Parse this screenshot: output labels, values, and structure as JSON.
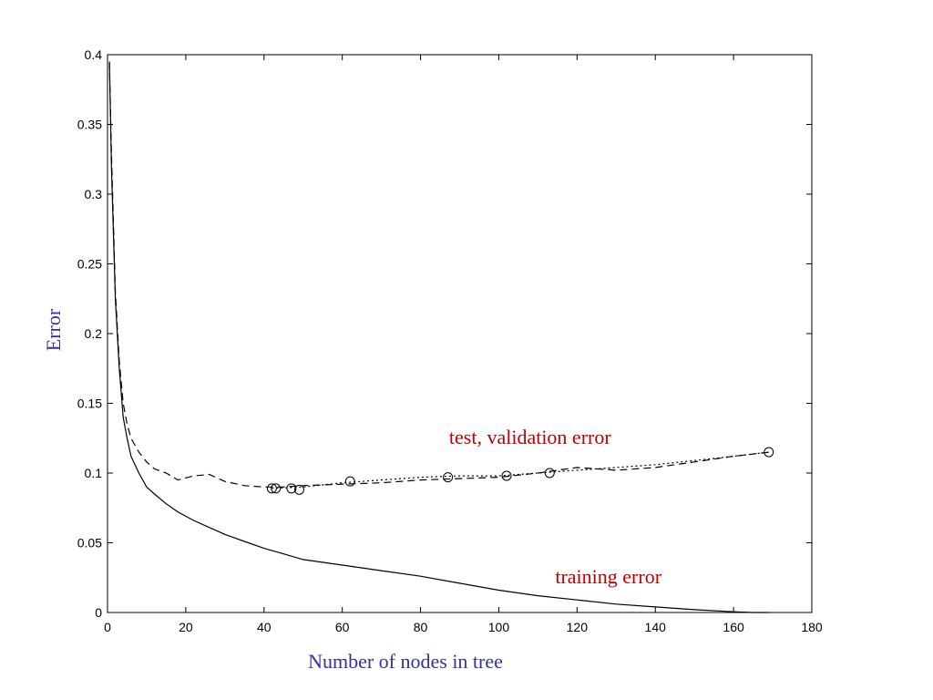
{
  "chart_data": {
    "type": "line",
    "xlabel": "Number of nodes in tree",
    "ylabel": "Error",
    "xlim": [
      0,
      180
    ],
    "ylim": [
      0,
      0.4
    ],
    "xticks": [
      0,
      20,
      40,
      60,
      80,
      100,
      120,
      140,
      160,
      180
    ],
    "xtick_labels": [
      "0",
      "20",
      "40",
      "60",
      "80",
      "100",
      "120",
      "140",
      "160",
      "180"
    ],
    "yticks": [
      0,
      0.05,
      0.1,
      0.15,
      0.2,
      0.25,
      0.3,
      0.35,
      0.4
    ],
    "ytick_labels": [
      "0",
      "0.05",
      "0.1",
      "0.15",
      "0.2",
      "0.25",
      "0.3",
      "0.35",
      "0.4"
    ],
    "grid": false,
    "series": [
      {
        "line_style": "solid",
        "color": "#000000",
        "x": [
          0.5,
          1,
          2,
          3,
          4,
          5,
          6,
          8,
          10,
          12,
          15,
          18,
          22,
          26,
          30,
          35,
          40,
          45,
          50,
          60,
          70,
          80,
          90,
          100,
          110,
          120,
          130,
          140,
          150,
          160,
          165,
          169
        ],
        "y": [
          0.395,
          0.32,
          0.225,
          0.175,
          0.14,
          0.125,
          0.112,
          0.1,
          0.09,
          0.085,
          0.078,
          0.072,
          0.066,
          0.061,
          0.056,
          0.051,
          0.046,
          0.042,
          0.038,
          0.034,
          0.03,
          0.026,
          0.021,
          0.016,
          0.012,
          0.009,
          0.006,
          0.004,
          0.002,
          0.0005,
          0.0,
          0.0
        ]
      },
      {
        "line_style": "dashed",
        "color": "#000000",
        "x": [
          0.5,
          1,
          2,
          3,
          4,
          5,
          6,
          8,
          10,
          12,
          15,
          18,
          22,
          26,
          30,
          35,
          40,
          45,
          50,
          60,
          70,
          80,
          90,
          100,
          110,
          120,
          130,
          140,
          150,
          160,
          169
        ],
        "y": [
          0.395,
          0.33,
          0.23,
          0.18,
          0.15,
          0.135,
          0.125,
          0.115,
          0.108,
          0.103,
          0.1,
          0.095,
          0.098,
          0.099,
          0.094,
          0.091,
          0.09,
          0.09,
          0.091,
          0.092,
          0.093,
          0.095,
          0.096,
          0.097,
          0.1,
          0.104,
          0.102,
          0.104,
          0.108,
          0.112,
          0.115
        ]
      },
      {
        "line_style": "dotted",
        "color": "#000000",
        "x": [
          42,
          50,
          60,
          70,
          80,
          90,
          100,
          110,
          120,
          130,
          140,
          150,
          160,
          169
        ],
        "y": [
          0.089,
          0.09,
          0.093,
          0.095,
          0.097,
          0.098,
          0.098,
          0.1,
          0.102,
          0.104,
          0.106,
          0.109,
          0.112,
          0.115
        ]
      }
    ],
    "markers": {
      "shape": "circle",
      "x": [
        42,
        43,
        47,
        49,
        62,
        87,
        102,
        113,
        169
      ],
      "y": [
        0.089,
        0.089,
        0.089,
        0.088,
        0.094,
        0.097,
        0.098,
        0.1,
        0.115
      ]
    },
    "annotations": [
      {
        "text": "test, validation error",
        "x": 108,
        "y": 0.121
      },
      {
        "text": "training error",
        "x": 128,
        "y": 0.021
      }
    ]
  }
}
